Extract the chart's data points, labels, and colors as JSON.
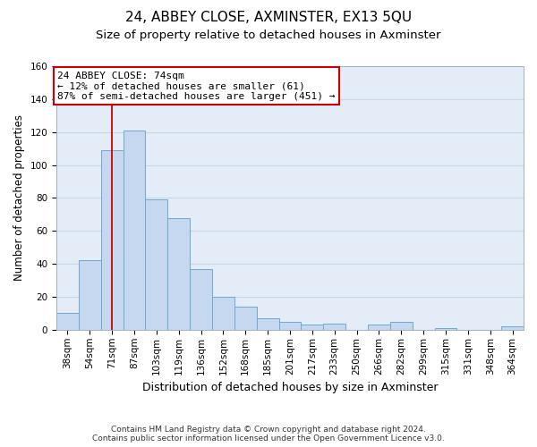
{
  "title1": "24, ABBEY CLOSE, AXMINSTER, EX13 5QU",
  "title2": "Size of property relative to detached houses in Axminster",
  "xlabel": "Distribution of detached houses by size in Axminster",
  "ylabel": "Number of detached properties",
  "bar_labels": [
    "38sqm",
    "54sqm",
    "71sqm",
    "87sqm",
    "103sqm",
    "119sqm",
    "136sqm",
    "152sqm",
    "168sqm",
    "185sqm",
    "201sqm",
    "217sqm",
    "233sqm",
    "250sqm",
    "266sqm",
    "282sqm",
    "299sqm",
    "315sqm",
    "331sqm",
    "348sqm",
    "364sqm"
  ],
  "bar_values": [
    10,
    42,
    109,
    121,
    79,
    68,
    37,
    20,
    14,
    7,
    5,
    3,
    4,
    0,
    3,
    5,
    0,
    1,
    0,
    0,
    2
  ],
  "bar_color": "#c5d8f0",
  "bar_edge_color": "#6fa8d0",
  "vline_x_index": 2,
  "vline_color": "#cc0000",
  "annotation_line1": "24 ABBEY CLOSE: 74sqm",
  "annotation_line2": "← 12% of detached houses are smaller (61)",
  "annotation_line3": "87% of semi-detached houses are larger (451) →",
  "annotation_box_color": "#ffffff",
  "annotation_box_edge": "#cc0000",
  "ylim": [
    0,
    160
  ],
  "yticks": [
    0,
    20,
    40,
    60,
    80,
    100,
    120,
    140,
    160
  ],
  "grid_color": "#c8d4e8",
  "bg_color": "#e4ecf7",
  "footnote": "Contains HM Land Registry data © Crown copyright and database right 2024.\nContains public sector information licensed under the Open Government Licence v3.0.",
  "title1_fontsize": 11,
  "title2_fontsize": 9.5,
  "xlabel_fontsize": 9,
  "ylabel_fontsize": 8.5,
  "tick_fontsize": 7.5,
  "annotation_fontsize": 8,
  "footnote_fontsize": 6.5
}
